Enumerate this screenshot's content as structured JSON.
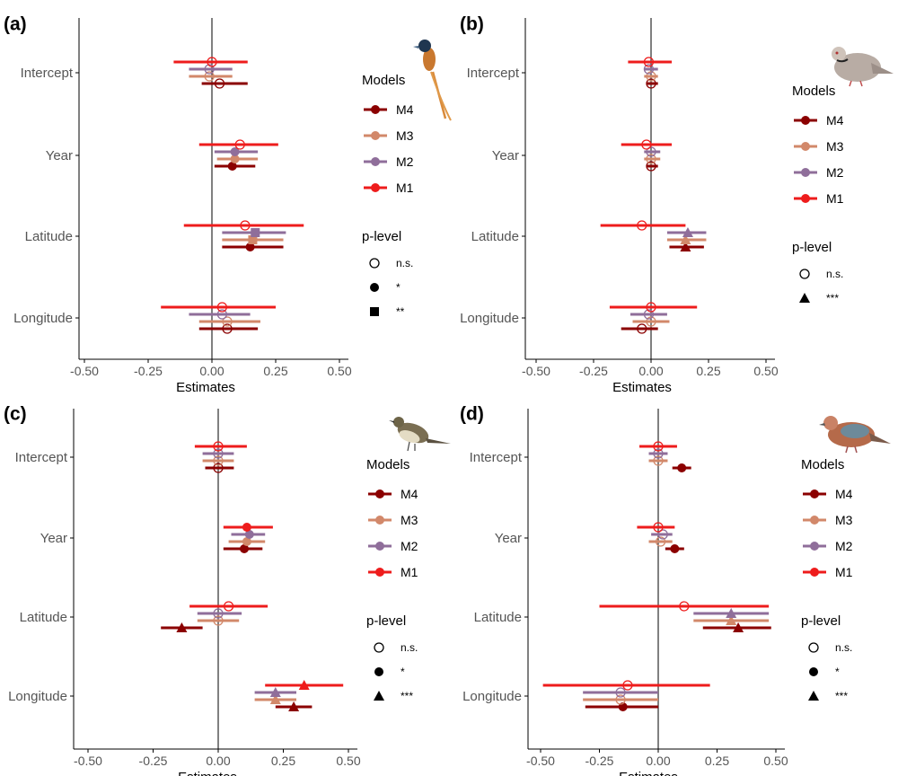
{
  "figure": {
    "colors": {
      "M4": "#8b0000",
      "M3": "#d2886a",
      "M2": "#8f6e9a",
      "M1": "#ee1c1c",
      "axis": "#000000",
      "text": "#000000",
      "tick_text": "#555555"
    },
    "legend_titles": {
      "models": "Models",
      "plevel": "p-level"
    }
  },
  "chart_data": [
    {
      "id": "a",
      "panel_label": "(a)",
      "type": "forest",
      "xlabel": "Estimates",
      "xlim": [
        -0.55,
        0.55
      ],
      "xticks": [
        -0.5,
        -0.25,
        0,
        0.25,
        0.5
      ],
      "xtick_labels": [
        "-0.50",
        "-0.25",
        "0.00",
        "0.25",
        "0.50"
      ],
      "categories": [
        "Intercept",
        "Year",
        "Latitude",
        "Longitude"
      ],
      "series": [
        {
          "name": "M4",
          "estimates": [
            0.03,
            0.08,
            0.15,
            0.06
          ],
          "ci": [
            [
              -0.04,
              0.14
            ],
            [
              0.01,
              0.17
            ],
            [
              0.04,
              0.28
            ],
            [
              -0.05,
              0.18
            ]
          ],
          "p": [
            "ns",
            "*",
            "*",
            "ns"
          ]
        },
        {
          "name": "M3",
          "estimates": [
            -0.01,
            0.09,
            0.16,
            0.06
          ],
          "ci": [
            [
              -0.09,
              0.08
            ],
            [
              0.02,
              0.18
            ],
            [
              0.04,
              0.28
            ],
            [
              -0.05,
              0.19
            ]
          ],
          "p": [
            "ns",
            "*",
            "**",
            "ns"
          ]
        },
        {
          "name": "M2",
          "estimates": [
            -0.01,
            0.09,
            0.17,
            0.04
          ],
          "ci": [
            [
              -0.09,
              0.08
            ],
            [
              0.01,
              0.18
            ],
            [
              0.04,
              0.29
            ],
            [
              -0.09,
              0.15
            ]
          ],
          "p": [
            "ns",
            "*",
            "**",
            "ns"
          ]
        },
        {
          "name": "M1",
          "estimates": [
            0.0,
            0.11,
            0.13,
            0.04
          ],
          "ci": [
            [
              -0.15,
              0.14
            ],
            [
              -0.05,
              0.26
            ],
            [
              -0.11,
              0.36
            ],
            [
              -0.2,
              0.25
            ]
          ],
          "p": [
            "ns",
            "ns",
            "ns",
            "ns"
          ]
        }
      ],
      "legend": {
        "models": [
          "M4",
          "M3",
          "M2",
          "M1"
        ],
        "plevel": [
          {
            "shape": "ns",
            "label": "n.s."
          },
          {
            "shape": "*",
            "label": "*"
          },
          {
            "shape": "**",
            "label": "**"
          }
        ]
      }
    },
    {
      "id": "b",
      "panel_label": "(b)",
      "type": "forest",
      "xlabel": "Estimates",
      "xlim": [
        -0.55,
        0.55
      ],
      "xticks": [
        -0.5,
        -0.25,
        0,
        0.25,
        0.5
      ],
      "xtick_labels": [
        "-0.50",
        "-0.25",
        "0.00",
        "0.25",
        "0.50"
      ],
      "categories": [
        "Intercept",
        "Year",
        "Latitude",
        "Longitude"
      ],
      "series": [
        {
          "name": "M4",
          "estimates": [
            0.0,
            0.0,
            0.15,
            -0.04
          ],
          "ci": [
            [
              -0.02,
              0.03
            ],
            [
              -0.02,
              0.03
            ],
            [
              0.08,
              0.23
            ],
            [
              -0.13,
              0.03
            ]
          ],
          "p": [
            "ns",
            "ns",
            "***",
            "ns"
          ]
        },
        {
          "name": "M3",
          "estimates": [
            0.0,
            0.0,
            0.15,
            0.0
          ],
          "ci": [
            [
              -0.03,
              0.03
            ],
            [
              -0.03,
              0.04
            ],
            [
              0.07,
              0.24
            ],
            [
              -0.08,
              0.08
            ]
          ],
          "p": [
            "ns",
            "ns",
            "***",
            "ns"
          ]
        },
        {
          "name": "M2",
          "estimates": [
            -0.01,
            0.0,
            0.16,
            -0.01
          ],
          "ci": [
            [
              -0.03,
              0.03
            ],
            [
              -0.03,
              0.04
            ],
            [
              0.07,
              0.24
            ],
            [
              -0.09,
              0.07
            ]
          ],
          "p": [
            "ns",
            "ns",
            "***",
            "ns"
          ]
        },
        {
          "name": "M1",
          "estimates": [
            -0.01,
            -0.02,
            -0.04,
            0.0
          ],
          "ci": [
            [
              -0.1,
              0.09
            ],
            [
              -0.13,
              0.09
            ],
            [
              -0.22,
              0.15
            ],
            [
              -0.18,
              0.2
            ]
          ],
          "p": [
            "ns",
            "ns",
            "ns",
            "ns"
          ]
        }
      ],
      "legend": {
        "models": [
          "M4",
          "M3",
          "M2",
          "M1"
        ],
        "plevel": [
          {
            "shape": "ns",
            "label": "n.s."
          },
          {
            "shape": "***",
            "label": "***"
          }
        ]
      }
    },
    {
      "id": "c",
      "panel_label": "(c)",
      "type": "forest",
      "xlabel": "Estimates",
      "xlim": [
        -0.55,
        0.55
      ],
      "xticks": [
        -0.5,
        -0.25,
        0,
        0.25,
        0.5
      ],
      "xtick_labels": [
        "-0.50",
        "-0.25",
        "0.00",
        "0.25",
        "0.50"
      ],
      "categories": [
        "Intercept",
        "Year",
        "Latitude",
        "Longitude"
      ],
      "series": [
        {
          "name": "M4",
          "estimates": [
            0.0,
            0.1,
            -0.14,
            0.29
          ],
          "ci": [
            [
              -0.05,
              0.06
            ],
            [
              0.02,
              0.17
            ],
            [
              -0.22,
              -0.06
            ],
            [
              0.22,
              0.36
            ]
          ],
          "p": [
            "ns",
            "*",
            "***",
            "***"
          ]
        },
        {
          "name": "M3",
          "estimates": [
            0.0,
            0.11,
            0.0,
            0.22
          ],
          "ci": [
            [
              -0.06,
              0.06
            ],
            [
              0.04,
              0.18
            ],
            [
              -0.08,
              0.08
            ],
            [
              0.14,
              0.3
            ]
          ],
          "p": [
            "ns",
            "*",
            "ns",
            "***"
          ]
        },
        {
          "name": "M2",
          "estimates": [
            0.0,
            0.12,
            0.0,
            0.22
          ],
          "ci": [
            [
              -0.06,
              0.06
            ],
            [
              0.05,
              0.18
            ],
            [
              -0.08,
              0.09
            ],
            [
              0.14,
              0.3
            ]
          ],
          "p": [
            "ns",
            "*",
            "ns",
            "***"
          ]
        },
        {
          "name": "M1",
          "estimates": [
            0.0,
            0.11,
            0.04,
            0.33
          ],
          "ci": [
            [
              -0.09,
              0.11
            ],
            [
              0.02,
              0.21
            ],
            [
              -0.11,
              0.19
            ],
            [
              0.18,
              0.48
            ]
          ],
          "p": [
            "ns",
            "*",
            "ns",
            "***"
          ]
        }
      ],
      "legend": {
        "models": [
          "M4",
          "M3",
          "M2",
          "M1"
        ],
        "plevel": [
          {
            "shape": "ns",
            "label": "n.s."
          },
          {
            "shape": "*",
            "label": "*"
          },
          {
            "shape": "***",
            "label": "***"
          }
        ]
      }
    },
    {
      "id": "d",
      "panel_label": "(d)",
      "type": "forest",
      "xlabel": "Estimates",
      "xlim": [
        -0.55,
        0.55
      ],
      "xticks": [
        -0.5,
        -0.25,
        0,
        0.25,
        0.5
      ],
      "xtick_labels": [
        "-0.50",
        "-0.25",
        "0.00",
        "0.25",
        "0.50"
      ],
      "categories": [
        "Intercept",
        "Year",
        "Latitude",
        "Longitude"
      ],
      "series": [
        {
          "name": "M4",
          "estimates": [
            0.1,
            0.07,
            0.34,
            -0.15
          ],
          "ci": [
            [
              0.06,
              0.14
            ],
            [
              0.03,
              0.11
            ],
            [
              0.19,
              0.48
            ],
            [
              -0.31,
              0.0
            ]
          ],
          "p": [
            "*",
            "*",
            "***",
            "*"
          ]
        },
        {
          "name": "M3",
          "estimates": [
            0.0,
            0.01,
            0.31,
            -0.16
          ],
          "ci": [
            [
              -0.04,
              0.04
            ],
            [
              -0.04,
              0.06
            ],
            [
              0.15,
              0.47
            ],
            [
              -0.32,
              0.0
            ]
          ],
          "p": [
            "ns",
            "ns",
            "***",
            "ns"
          ]
        },
        {
          "name": "M2",
          "estimates": [
            0.0,
            0.02,
            0.31,
            -0.16
          ],
          "ci": [
            [
              -0.04,
              0.04
            ],
            [
              -0.03,
              0.06
            ],
            [
              0.15,
              0.47
            ],
            [
              -0.32,
              0.0
            ]
          ],
          "p": [
            "ns",
            "ns",
            "***",
            "ns"
          ]
        },
        {
          "name": "M1",
          "estimates": [
            0.0,
            0.0,
            0.11,
            -0.13
          ],
          "ci": [
            [
              -0.08,
              0.08
            ],
            [
              -0.09,
              0.07
            ],
            [
              -0.25,
              0.47
            ],
            [
              -0.49,
              0.22
            ]
          ],
          "p": [
            "ns",
            "ns",
            "ns",
            "ns"
          ]
        }
      ],
      "legend": {
        "models": [
          "M4",
          "M3",
          "M2",
          "M1"
        ],
        "plevel": [
          {
            "shape": "ns",
            "label": "n.s."
          },
          {
            "shape": "*",
            "label": "*"
          },
          {
            "shape": "***",
            "label": "***"
          }
        ]
      }
    }
  ]
}
